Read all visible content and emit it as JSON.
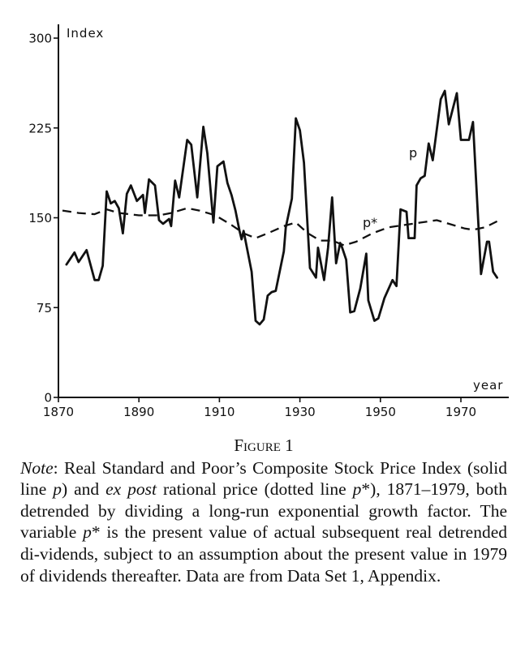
{
  "chart_data": {
    "type": "line",
    "title": "",
    "xlabel": "year",
    "ylabel": "Index",
    "xlim": [
      1870,
      1982
    ],
    "ylim": [
      0,
      300
    ],
    "x_ticks": [
      1870,
      1890,
      1910,
      1930,
      1950,
      1970
    ],
    "x_tick_labels": [
      "1870",
      "1890",
      "1910",
      "1930",
      "1950",
      "1970"
    ],
    "y_ticks": [
      0,
      75,
      150,
      225,
      300
    ],
    "y_tick_labels": [
      "0",
      "75",
      "150",
      "225",
      "300"
    ],
    "grid": false,
    "legend": "inline labels",
    "series": [
      {
        "name": "p",
        "label": "p",
        "style": "solid",
        "x": [
          1872,
          1874,
          1875,
          1877,
          1879,
          1880,
          1881,
          1882,
          1883,
          1884,
          1885,
          1886,
          1887,
          1888,
          1889.5,
          1891,
          1891.5,
          1892.5,
          1894,
          1895,
          1896,
          1897.5,
          1898,
          1899,
          1900,
          1902,
          1903,
          1904.5,
          1906,
          1907,
          1908.5,
          1909.5,
          1911,
          1912,
          1913,
          1914,
          1915,
          1915.5,
          1916,
          1918,
          1919,
          1920,
          1921,
          1922,
          1923,
          1924,
          1926,
          1926.5,
          1928,
          1929,
          1930,
          1931,
          1932.5,
          1934,
          1934.5,
          1936,
          1937,
          1938,
          1939,
          1940,
          1940.5,
          1941.5,
          1942.5,
          1943.5,
          1945,
          1946.5,
          1947,
          1948.5,
          1949.5,
          1951,
          1953,
          1954,
          1955,
          1956.5,
          1957,
          1958.5,
          1959,
          1960,
          1961,
          1962,
          1963,
          1965,
          1966,
          1967,
          1969,
          1970,
          1972,
          1973,
          1975,
          1976.5,
          1977,
          1978,
          1979
        ],
        "values": [
          111,
          121,
          113,
          123,
          98,
          98,
          110,
          172,
          162,
          164,
          158,
          137,
          170,
          177,
          164,
          169,
          154,
          182,
          177,
          148,
          145,
          149,
          143,
          181,
          167,
          215,
          211,
          167,
          226,
          204,
          146,
          193,
          197,
          179,
          169,
          156,
          139,
          132,
          139,
          105,
          64,
          61,
          65,
          85,
          88,
          89,
          122,
          142,
          166,
          233,
          223,
          196,
          108,
          100,
          125,
          98,
          125,
          167,
          112,
          129,
          125,
          115,
          71,
          72,
          91,
          120,
          81,
          64,
          66,
          83,
          98,
          93,
          157,
          155,
          133,
          133,
          177,
          183,
          185,
          212,
          198,
          249,
          256,
          228,
          254,
          215,
          215,
          230,
          103,
          130,
          130,
          105,
          100
        ]
      },
      {
        "name": "p*",
        "label": "p*",
        "style": "dashed",
        "x": [
          1871,
          1875,
          1879,
          1882,
          1885,
          1890,
          1895,
          1898,
          1902,
          1905,
          1909,
          1913,
          1916,
          1919,
          1922,
          1926,
          1929,
          1932,
          1935,
          1938,
          1941,
          1944,
          1948,
          1952,
          1956,
          1960,
          1964,
          1967,
          1971,
          1973,
          1976,
          1979
        ],
        "values": [
          156,
          154,
          153,
          157,
          154,
          152,
          152,
          154,
          158,
          156,
          152,
          144,
          137,
          133,
          137,
          143,
          146,
          137,
          131,
          131,
          127,
          130,
          137,
          142,
          144,
          146,
          148,
          145,
          141,
          140,
          142,
          147
        ]
      }
    ]
  },
  "caption": {
    "figure_title": "Figure 1",
    "note_label": "Note",
    "note_segments": [
      {
        "text": ": Real Standard and Poor’s Composite Stock Price Index (solid line ",
        "italic": false
      },
      {
        "text": "p",
        "italic": true
      },
      {
        "text": ") and ",
        "italic": false
      },
      {
        "text": "ex post",
        "italic": true
      },
      {
        "text": " rational price (dotted line ",
        "italic": false
      },
      {
        "text": "p",
        "italic": true
      },
      {
        "text": "*), 1871–1979, both detrended by dividing a long-run exponential growth factor. The variable ",
        "italic": false
      },
      {
        "text": "p",
        "italic": true
      },
      {
        "text": "* is the present value of actual subsequent real detrended di-vidends, subject to an assumption about the present value in 1979 of dividends thereafter. Data are from Data Set 1, Appendix.",
        "italic": false
      }
    ]
  },
  "colors": {
    "line": "#111111",
    "background": "#ffffff"
  }
}
